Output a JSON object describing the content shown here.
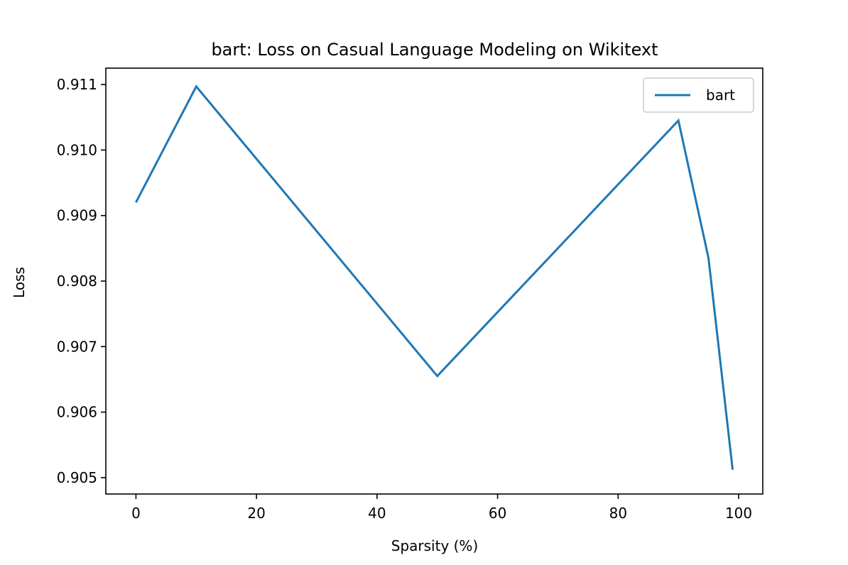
{
  "chart_data": {
    "type": "line",
    "title": "bart: Loss on Casual Language Modeling on Wikitext",
    "xlabel": "Sparsity (%)",
    "ylabel": "Loss",
    "xlim": [
      -5,
      104
    ],
    "ylim": [
      0.90475,
      0.91125
    ],
    "xticks": [
      0,
      20,
      40,
      60,
      80,
      100
    ],
    "yticks": [
      0.905,
      0.906,
      0.907,
      0.908,
      0.909,
      0.91,
      0.911
    ],
    "xtick_labels": [
      "0",
      "20",
      "40",
      "60",
      "80",
      "100"
    ],
    "ytick_labels": [
      "0.905",
      "0.906",
      "0.907",
      "0.908",
      "0.909",
      "0.910",
      "0.911"
    ],
    "grid": false,
    "legend_position": "upper right",
    "series": [
      {
        "name": "bart",
        "color": "#1f77b4",
        "x": [
          0,
          10,
          50,
          90,
          95,
          99
        ],
        "y": [
          0.9092,
          0.91097,
          0.90655,
          0.91045,
          0.90835,
          0.90512
        ]
      }
    ]
  }
}
